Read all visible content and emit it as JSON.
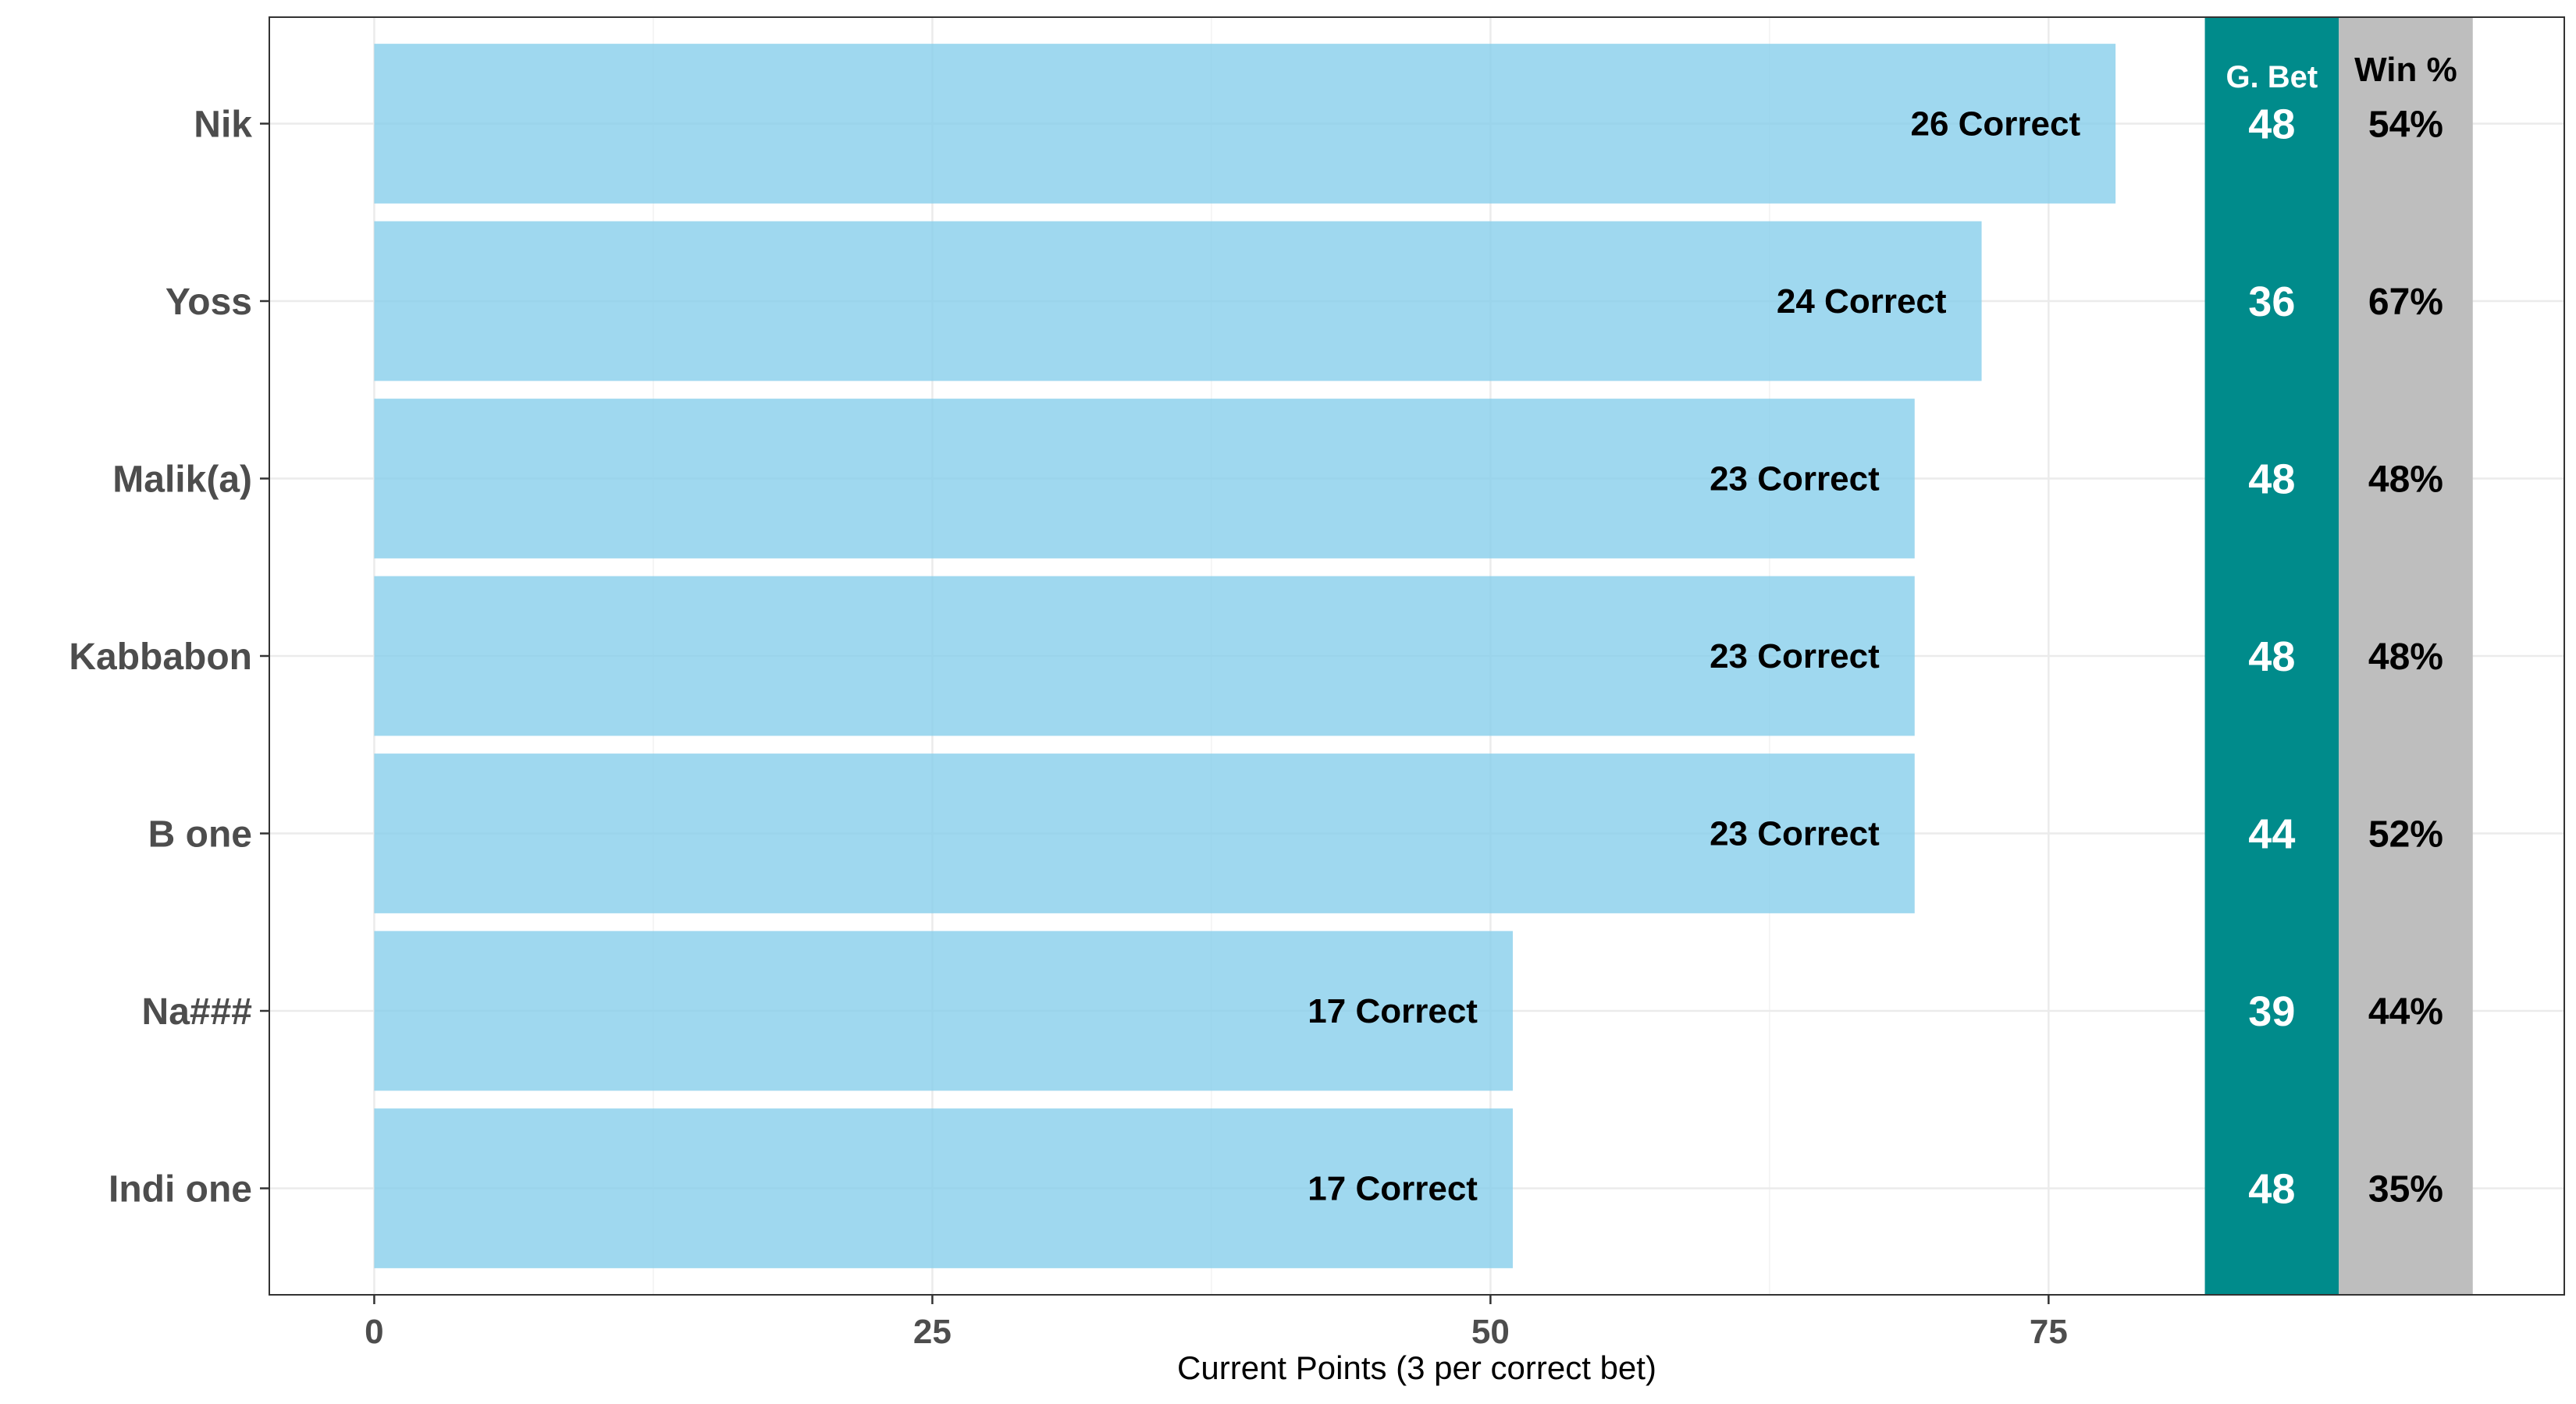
{
  "chart_data": {
    "type": "bar",
    "orientation": "horizontal",
    "categories": [
      "Nik",
      "Yoss",
      "Malik(a)",
      "Kabbabon",
      "B one",
      "Na###",
      "Indi one"
    ],
    "values": [
      78,
      72,
      69,
      69,
      69,
      51,
      51
    ],
    "bar_labels": [
      "26 Correct",
      "24 Correct",
      "23 Correct",
      "23 Correct",
      "23 Correct",
      "17 Correct",
      "17 Correct"
    ],
    "xlabel": "Current Points (3 per correct bet)",
    "ylabel": "",
    "xlim": [
      -4.7,
      98.1
    ],
    "x_ticks": [
      0,
      25,
      50,
      75
    ],
    "grid": true,
    "bar_color": "#87CEEB",
    "side_columns": [
      {
        "header": "G. Bet",
        "values": [
          "48",
          "36",
          "48",
          "48",
          "44",
          "39",
          "48"
        ],
        "x_range": [
          82,
          88
        ],
        "background": "#008B8B",
        "text_color": "#ffffff"
      },
      {
        "header": "Win %",
        "values": [
          "54%",
          "67%",
          "48%",
          "48%",
          "52%",
          "44%",
          "35%"
        ],
        "x_range": [
          88,
          94
        ],
        "background": "#BEBEBE",
        "text_color": "#000000"
      }
    ]
  }
}
